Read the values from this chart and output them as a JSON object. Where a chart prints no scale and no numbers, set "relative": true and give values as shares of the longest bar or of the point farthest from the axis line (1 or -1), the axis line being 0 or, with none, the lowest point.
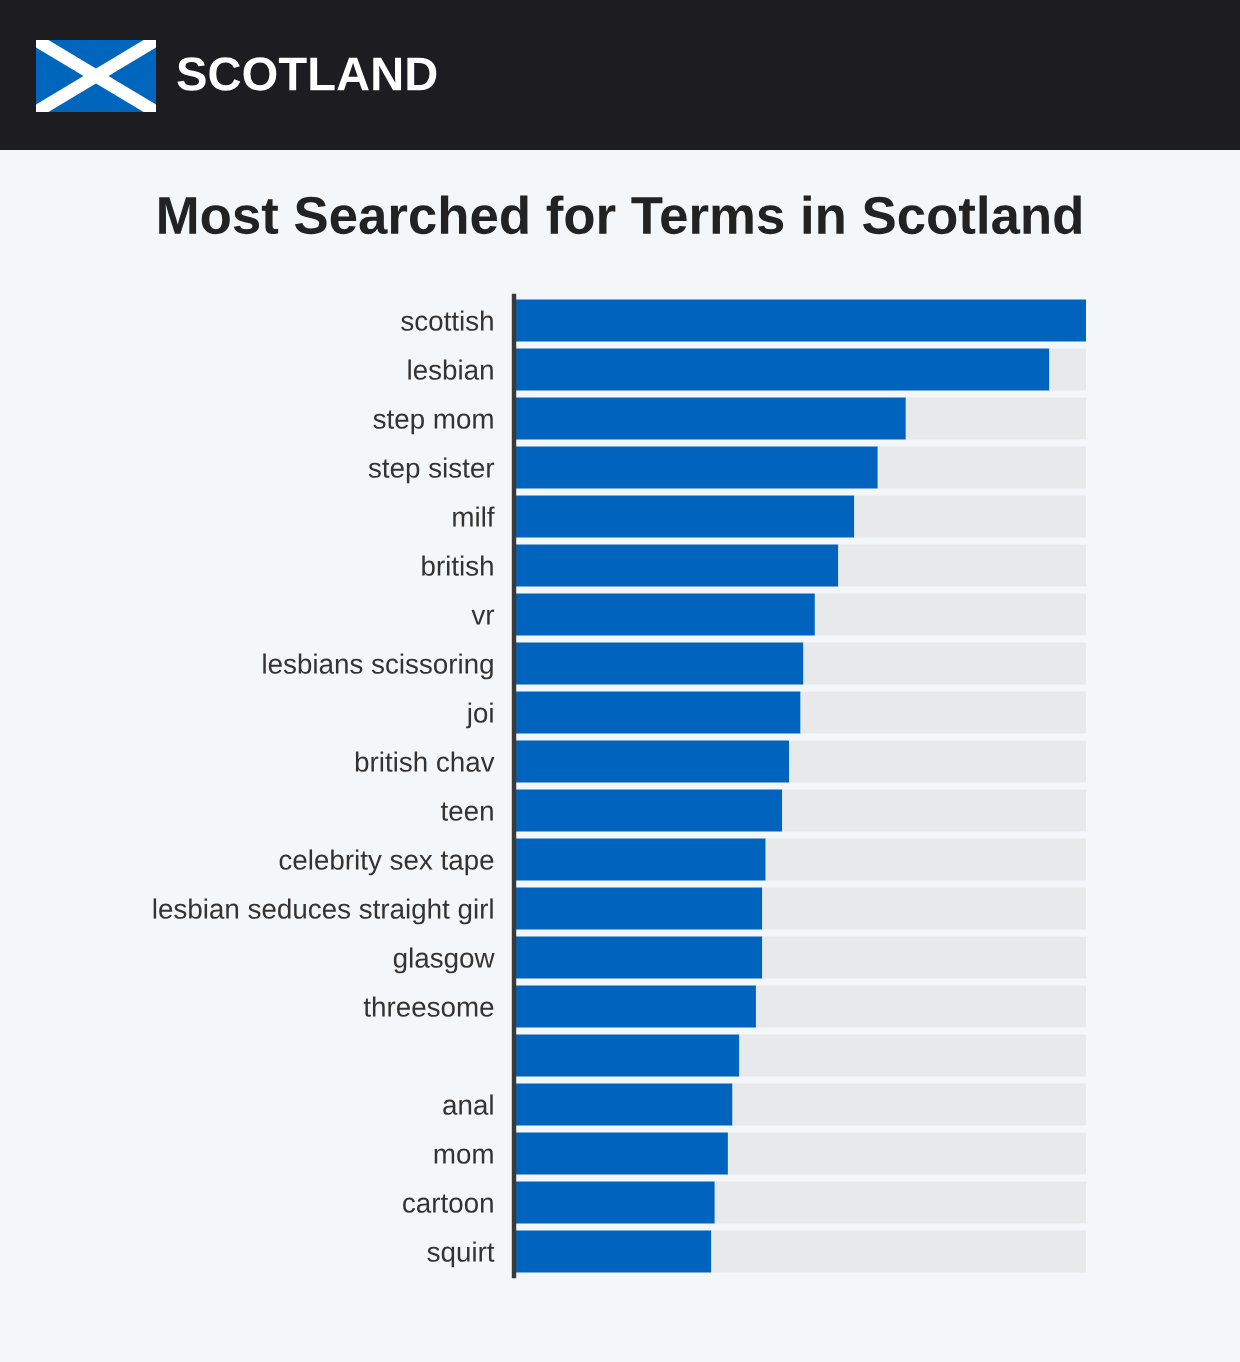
{
  "chart_data": {
    "type": "bar",
    "orientation": "horizontal",
    "stacked": true,
    "relative": true,
    "title": "Most Searched for Terms in Scotland",
    "annotations": [
      "SCOTLAND"
    ],
    "categories": [
      "scottish",
      "lesbian",
      "step mom",
      "step sister",
      "milf",
      "british",
      "vr",
      "lesbians scissoring",
      "joi",
      "british chav",
      "teen",
      "celebrity sex tape",
      "lesbian seduces straight girl",
      "glasgow",
      "threesome",
      null,
      "anal",
      "mom",
      "cartoon",
      "squirt"
    ],
    "series": [
      {
        "color": "#0063be",
        "values": [
          1,
          0.936,
          0.685,
          0.636,
          0.595,
          0.567,
          0.526,
          0.506,
          0.501,
          0.481,
          0.469,
          0.44,
          0.434,
          0.434,
          0.423,
          0.394,
          0.382,
          0.374,
          0.351,
          0.345
        ]
      },
      {
        "color": "#e8e9eb",
        "values": [
          null,
          0.064,
          0.315,
          0.364,
          0.405,
          0.433,
          0.474,
          0.494,
          0.499,
          0.519,
          0.531,
          0.56,
          0.566,
          0.566,
          0.577,
          0.606,
          0.618,
          0.626,
          0.649,
          0.655
        ]
      }
    ]
  }
}
